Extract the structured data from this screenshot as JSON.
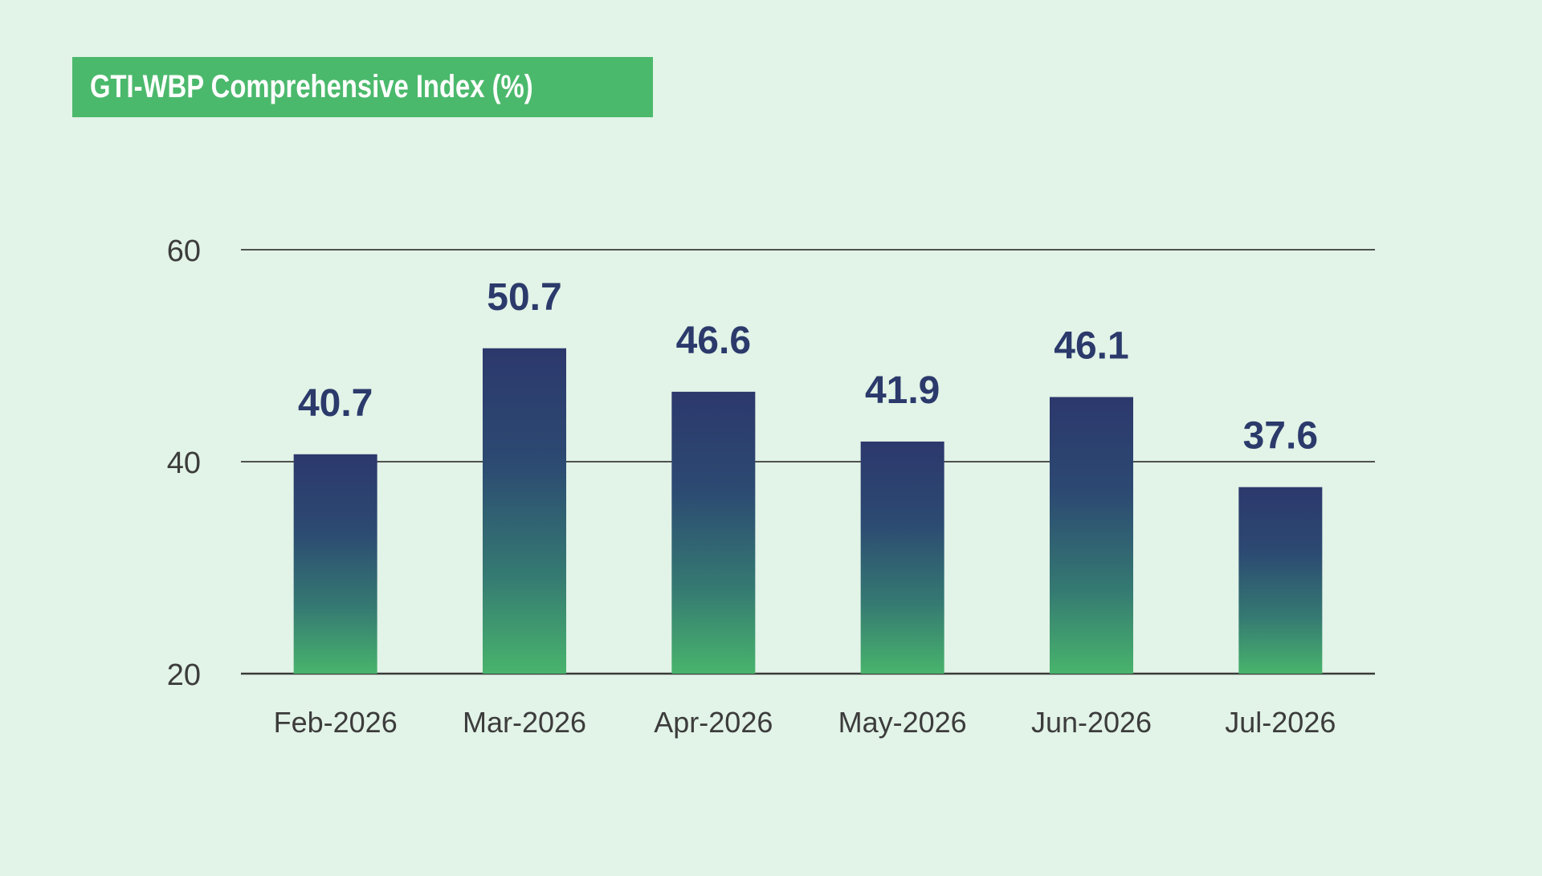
{
  "title": "GTI-WBP Comprehensive Index (%)",
  "colors": {
    "background": "#e2f3e7",
    "title_box": "#4bb96c",
    "bar_top": "#2c386c",
    "bar_bottom": "#48b46c",
    "value_label": "#2b3a6b",
    "gridline": "#3a3a3a"
  },
  "chart_data": {
    "type": "bar",
    "title": "GTI-WBP Comprehensive Index (%)",
    "categories": [
      "Feb-2026",
      "Mar-2026",
      "Apr-2026",
      "May-2026",
      "Jun-2026",
      "Jul-2026"
    ],
    "values": [
      40.7,
      50.7,
      46.6,
      41.9,
      46.1,
      37.6
    ],
    "value_labels": [
      "40.7",
      "50.7",
      "46.6",
      "41.9",
      "46.1",
      "37.6"
    ],
    "yticks": [
      20,
      40,
      60
    ],
    "ytick_labels": [
      "20",
      "40",
      "60"
    ],
    "ylim": [
      20,
      60
    ],
    "grid": true,
    "legend": "none",
    "xlabel": "",
    "ylabel": ""
  }
}
